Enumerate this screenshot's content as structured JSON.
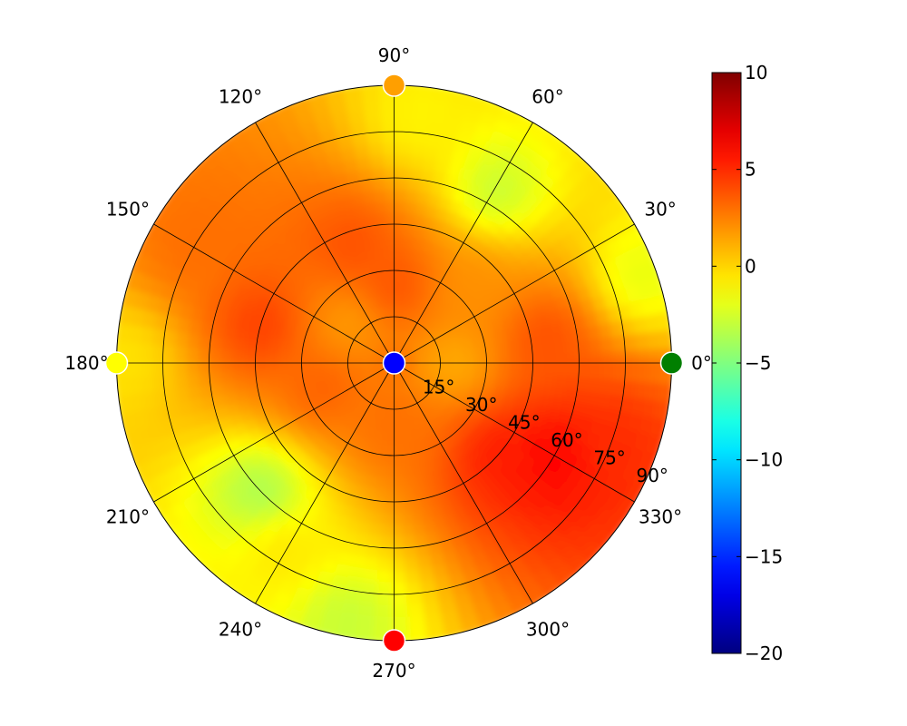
{
  "chart_data": {
    "type": "heatmap",
    "projection": "polar",
    "angle_tick_labels": [
      "0°",
      "30°",
      "60°",
      "90°",
      "120°",
      "150°",
      "180°",
      "210°",
      "240°",
      "270°",
      "300°",
      "330°"
    ],
    "radial_tick_labels": [
      "15°",
      "30°",
      "45°",
      "60°",
      "75°",
      "90°"
    ],
    "radial_range": [
      0,
      90
    ],
    "grid": true,
    "colormap": "jet",
    "colorbar": {
      "vmin": -20,
      "vmax": 10,
      "tick_labels": [
        "10",
        "5",
        "0",
        "−5",
        "−10",
        "−15",
        "−20"
      ],
      "tick_values": [
        10,
        5,
        0,
        -5,
        -10,
        -15,
        -20
      ],
      "placement": "right"
    },
    "field_samples": [
      {
        "azimuth_deg": 330,
        "elevation_deg": 60,
        "value": 6.5
      },
      {
        "azimuth_deg": 320,
        "elevation_deg": 45,
        "value": 5.5
      },
      {
        "azimuth_deg": 340,
        "elevation_deg": 75,
        "value": 5.0
      },
      {
        "azimuth_deg": 10,
        "elevation_deg": 50,
        "value": 4.0
      },
      {
        "azimuth_deg": 165,
        "elevation_deg": 45,
        "value": 4.5
      },
      {
        "azimuth_deg": 110,
        "elevation_deg": 40,
        "value": 4.0
      },
      {
        "azimuth_deg": 90,
        "elevation_deg": 25,
        "value": 4.0
      },
      {
        "azimuth_deg": 200,
        "elevation_deg": 25,
        "value": 3.5
      },
      {
        "azimuth_deg": 270,
        "elevation_deg": 20,
        "value": 3.0
      },
      {
        "azimuth_deg": 150,
        "elevation_deg": 75,
        "value": 3.0
      },
      {
        "azimuth_deg": 60,
        "elevation_deg": 65,
        "value": -3.0
      },
      {
        "azimuth_deg": 85,
        "elevation_deg": 80,
        "value": -1.0
      },
      {
        "azimuth_deg": 225,
        "elevation_deg": 60,
        "value": -4.0
      },
      {
        "azimuth_deg": 260,
        "elevation_deg": 85,
        "value": -3.0
      },
      {
        "azimuth_deg": 20,
        "elevation_deg": 85,
        "value": -2.0
      },
      {
        "azimuth_deg": 180,
        "elevation_deg": 88,
        "value": -0.5
      },
      {
        "azimuth_deg": 240,
        "elevation_deg": 70,
        "value": -0.5
      },
      {
        "azimuth_deg": 0,
        "elevation_deg": 20,
        "value": 1.0
      },
      {
        "azimuth_deg": 45,
        "elevation_deg": 35,
        "value": 2.0
      },
      {
        "azimuth_deg": 140,
        "elevation_deg": 20,
        "value": 1.5
      }
    ],
    "center_value": -18,
    "markers": [
      {
        "azimuth_deg": 0,
        "value": -6.5,
        "color": "#007f00",
        "label": "0°"
      },
      {
        "azimuth_deg": 90,
        "value": 2.0,
        "color": "#ff9f00",
        "label": "90°"
      },
      {
        "azimuth_deg": 180,
        "value": -1.0,
        "color": "#ffff00",
        "label": "180°"
      },
      {
        "azimuth_deg": 270,
        "value": 8.0,
        "color": "#ff0000",
        "label": "270°"
      }
    ],
    "center_marker": {
      "value": -18,
      "color": "#0000ff"
    }
  }
}
